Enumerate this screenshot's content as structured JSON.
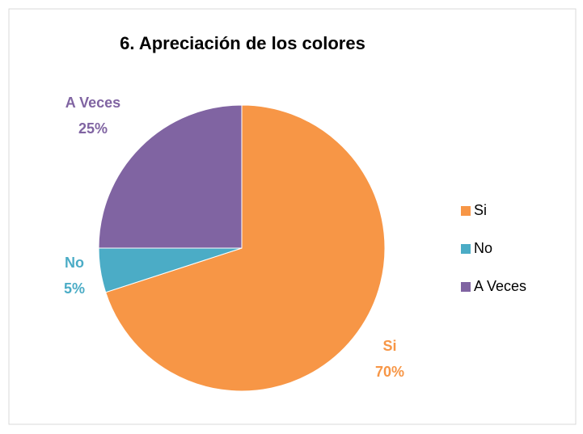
{
  "chart_data": {
    "type": "pie",
    "title": "6. Apreciación de los colores",
    "categories": [
      "Si",
      "No",
      "A Veces"
    ],
    "values": [
      70,
      5,
      25
    ],
    "value_labels": [
      "70%",
      "5%",
      "25%"
    ],
    "colors": [
      "#f79646",
      "#4bacc6",
      "#8064a2"
    ],
    "legend": "right"
  }
}
